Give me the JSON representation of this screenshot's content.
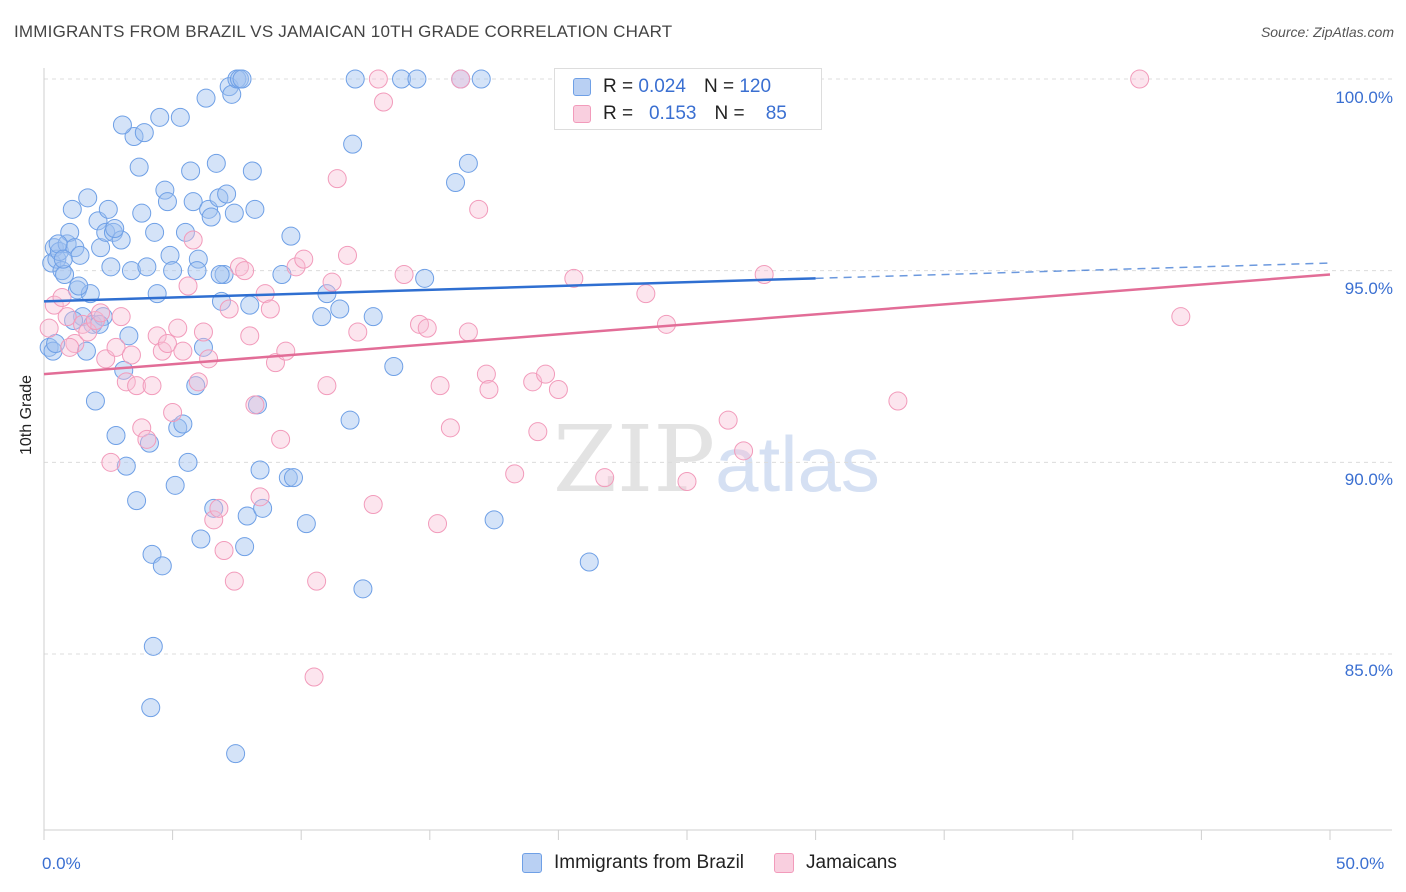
{
  "title": "IMMIGRANTS FROM BRAZIL VS JAMAICAN 10TH GRADE CORRELATION CHART",
  "source": "Source: ZipAtlas.com",
  "watermark": {
    "zip": "ZIP",
    "atlas": "atlas"
  },
  "legend": {
    "rows": [
      {
        "r_label": "R =",
        "r_value": "0.024",
        "n_label": "N =",
        "n_value": "120",
        "color": "#6fa0e6"
      },
      {
        "r_label": "R =",
        "r_value": "0.153",
        "n_label": "N =",
        "n_value": "85",
        "color": "#f29bbb"
      }
    ]
  },
  "bottom_legend": [
    {
      "label": "Immigrants from Brazil",
      "color": "#6fa0e6"
    },
    {
      "label": "Jamaicans",
      "color": "#f29bbb"
    }
  ],
  "y_axis": {
    "title": "10th Grade",
    "ticks": [
      "100.0%",
      "95.0%",
      "90.0%",
      "85.0%"
    ]
  },
  "x_axis": {
    "min_label": "0.0%",
    "max_label": "50.0%"
  },
  "chart_data": {
    "type": "scatter",
    "xlim": [
      0,
      50
    ],
    "ylim": [
      80.5,
      100.5
    ],
    "ytick_values": [
      100,
      95,
      90,
      85
    ],
    "grid": "horizontal dashed",
    "series": [
      {
        "name": "Immigrants from Brazil",
        "color": "#6fa0e6",
        "trend": {
          "x": [
            0,
            30
          ],
          "y": [
            94.2,
            94.8
          ],
          "dashed_to": [
            50,
            95.2
          ]
        },
        "points": [
          [
            0.2,
            93.0
          ],
          [
            0.3,
            95.2
          ],
          [
            0.4,
            95.6
          ],
          [
            0.5,
            95.3
          ],
          [
            0.6,
            95.5
          ],
          [
            0.7,
            95.0
          ],
          [
            0.8,
            94.9
          ],
          [
            0.9,
            95.7
          ],
          [
            1.0,
            96.0
          ],
          [
            1.1,
            96.6
          ],
          [
            1.2,
            95.6
          ],
          [
            1.3,
            94.5
          ],
          [
            1.4,
            95.4
          ],
          [
            1.5,
            93.8
          ],
          [
            1.7,
            96.9
          ],
          [
            1.8,
            94.4
          ],
          [
            1.9,
            93.6
          ],
          [
            2.0,
            91.6
          ],
          [
            2.1,
            96.3
          ],
          [
            2.2,
            95.6
          ],
          [
            2.3,
            93.8
          ],
          [
            2.4,
            96.0
          ],
          [
            2.5,
            96.6
          ],
          [
            2.6,
            95.1
          ],
          [
            2.7,
            96.0
          ],
          [
            2.8,
            90.7
          ],
          [
            3.0,
            95.8
          ],
          [
            3.1,
            92.4
          ],
          [
            3.2,
            89.9
          ],
          [
            3.3,
            93.3
          ],
          [
            3.4,
            95.0
          ],
          [
            3.5,
            98.5
          ],
          [
            3.6,
            89.0
          ],
          [
            3.7,
            97.7
          ],
          [
            3.8,
            96.5
          ],
          [
            3.9,
            98.6
          ],
          [
            4.0,
            95.1
          ],
          [
            4.1,
            90.5
          ],
          [
            4.2,
            87.6
          ],
          [
            4.3,
            96.0
          ],
          [
            4.4,
            94.4
          ],
          [
            4.5,
            99.0
          ],
          [
            4.6,
            87.3
          ],
          [
            4.7,
            97.1
          ],
          [
            4.8,
            96.8
          ],
          [
            4.9,
            95.4
          ],
          [
            5.0,
            95.0
          ],
          [
            5.1,
            89.4
          ],
          [
            5.2,
            90.9
          ],
          [
            5.3,
            99.0
          ],
          [
            5.4,
            91.0
          ],
          [
            5.5,
            96.0
          ],
          [
            5.6,
            90.0
          ],
          [
            5.7,
            97.6
          ],
          [
            5.8,
            96.8
          ],
          [
            5.9,
            92.0
          ],
          [
            6.0,
            95.3
          ],
          [
            6.1,
            88.0
          ],
          [
            6.2,
            93.0
          ],
          [
            6.3,
            99.5
          ],
          [
            6.4,
            96.6
          ],
          [
            6.5,
            96.4
          ],
          [
            6.6,
            88.8
          ],
          [
            6.7,
            97.8
          ],
          [
            6.8,
            96.9
          ],
          [
            6.9,
            94.2
          ],
          [
            7.0,
            94.9
          ],
          [
            7.1,
            97.0
          ],
          [
            7.2,
            99.8
          ],
          [
            7.3,
            99.6
          ],
          [
            7.4,
            96.5
          ],
          [
            7.5,
            100.0
          ],
          [
            7.6,
            100.0
          ],
          [
            7.7,
            100.0
          ],
          [
            7.8,
            87.8
          ],
          [
            7.9,
            88.6
          ],
          [
            8.0,
            94.1
          ],
          [
            8.1,
            97.6
          ],
          [
            8.2,
            96.6
          ],
          [
            8.3,
            91.5
          ],
          [
            8.4,
            89.8
          ],
          [
            8.5,
            88.8
          ],
          [
            9.5,
            89.6
          ],
          [
            9.6,
            95.9
          ],
          [
            9.7,
            89.6
          ],
          [
            10.2,
            88.4
          ],
          [
            10.8,
            93.8
          ],
          [
            11.0,
            94.4
          ],
          [
            11.5,
            94.0
          ],
          [
            11.9,
            91.1
          ],
          [
            12.0,
            98.3
          ],
          [
            12.1,
            100.0
          ],
          [
            12.4,
            86.7
          ],
          [
            12.8,
            93.8
          ],
          [
            13.6,
            92.5
          ],
          [
            13.9,
            100.0
          ],
          [
            14.5,
            100.0
          ],
          [
            14.8,
            94.8
          ],
          [
            16.0,
            97.3
          ],
          [
            16.2,
            100.0
          ],
          [
            16.5,
            97.8
          ],
          [
            17.0,
            100.0
          ],
          [
            17.5,
            88.5
          ],
          [
            21.2,
            87.4
          ],
          [
            0.35,
            92.9
          ],
          [
            0.45,
            93.1
          ],
          [
            0.55,
            95.7
          ],
          [
            0.75,
            95.3
          ],
          [
            1.15,
            93.7
          ],
          [
            1.35,
            94.6
          ],
          [
            1.65,
            92.9
          ],
          [
            2.15,
            93.6
          ],
          [
            3.05,
            98.8
          ],
          [
            4.25,
            85.2
          ],
          [
            4.15,
            83.6
          ],
          [
            7.45,
            82.4
          ],
          [
            5.95,
            95.0
          ],
          [
            6.85,
            94.9
          ],
          [
            2.75,
            96.1
          ],
          [
            9.25,
            94.9
          ]
        ]
      },
      {
        "name": "Jamaicans",
        "color": "#f29bbb",
        "trend": {
          "x": [
            0,
            50
          ],
          "y": [
            92.3,
            94.9
          ]
        },
        "points": [
          [
            0.2,
            93.5
          ],
          [
            0.4,
            94.1
          ],
          [
            0.7,
            94.3
          ],
          [
            0.9,
            93.8
          ],
          [
            1.2,
            93.1
          ],
          [
            1.5,
            93.6
          ],
          [
            1.7,
            93.4
          ],
          [
            2.0,
            93.7
          ],
          [
            2.2,
            93.9
          ],
          [
            2.4,
            92.7
          ],
          [
            2.6,
            90.0
          ],
          [
            2.8,
            93.0
          ],
          [
            3.0,
            93.8
          ],
          [
            3.2,
            92.1
          ],
          [
            3.4,
            92.8
          ],
          [
            3.6,
            92.0
          ],
          [
            3.8,
            90.9
          ],
          [
            4.0,
            90.6
          ],
          [
            4.2,
            92.0
          ],
          [
            4.4,
            93.3
          ],
          [
            4.6,
            92.9
          ],
          [
            4.8,
            93.1
          ],
          [
            5.0,
            91.3
          ],
          [
            5.2,
            93.5
          ],
          [
            5.4,
            92.9
          ],
          [
            5.6,
            94.6
          ],
          [
            5.8,
            95.8
          ],
          [
            6.0,
            92.1
          ],
          [
            6.2,
            93.4
          ],
          [
            6.4,
            92.7
          ],
          [
            6.6,
            88.5
          ],
          [
            6.8,
            88.8
          ],
          [
            7.0,
            87.7
          ],
          [
            7.2,
            94.0
          ],
          [
            7.4,
            86.9
          ],
          [
            7.6,
            95.1
          ],
          [
            7.8,
            95.0
          ],
          [
            8.0,
            93.3
          ],
          [
            8.2,
            91.5
          ],
          [
            8.4,
            89.1
          ],
          [
            8.6,
            94.4
          ],
          [
            8.8,
            94.0
          ],
          [
            9.0,
            92.6
          ],
          [
            9.2,
            90.6
          ],
          [
            9.4,
            92.9
          ],
          [
            9.8,
            95.1
          ],
          [
            10.1,
            95.3
          ],
          [
            10.6,
            86.9
          ],
          [
            11.0,
            92.0
          ],
          [
            11.2,
            94.7
          ],
          [
            11.4,
            97.4
          ],
          [
            11.8,
            95.4
          ],
          [
            12.2,
            93.4
          ],
          [
            12.8,
            88.9
          ],
          [
            13.0,
            100.0
          ],
          [
            13.2,
            99.4
          ],
          [
            14.0,
            94.9
          ],
          [
            14.6,
            93.6
          ],
          [
            14.9,
            93.5
          ],
          [
            15.3,
            88.4
          ],
          [
            15.4,
            92.0
          ],
          [
            15.8,
            90.9
          ],
          [
            16.2,
            100.0
          ],
          [
            16.5,
            93.4
          ],
          [
            16.9,
            96.6
          ],
          [
            17.2,
            92.3
          ],
          [
            17.3,
            91.9
          ],
          [
            18.3,
            89.7
          ],
          [
            19.0,
            92.1
          ],
          [
            19.2,
            90.8
          ],
          [
            19.5,
            92.3
          ],
          [
            20.0,
            91.9
          ],
          [
            20.6,
            94.8
          ],
          [
            21.8,
            89.6
          ],
          [
            23.4,
            94.4
          ],
          [
            24.2,
            93.6
          ],
          [
            25.0,
            89.5
          ],
          [
            26.6,
            91.1
          ],
          [
            27.2,
            90.3
          ],
          [
            28.0,
            94.9
          ],
          [
            33.2,
            91.6
          ],
          [
            42.6,
            100.0
          ],
          [
            44.2,
            93.8
          ],
          [
            10.5,
            84.4
          ],
          [
            1.0,
            93.0
          ]
        ]
      }
    ]
  }
}
